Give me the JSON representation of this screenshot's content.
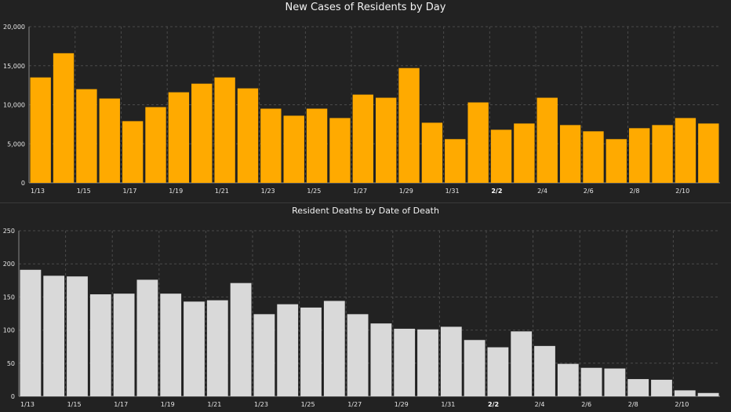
{
  "chart_data": [
    {
      "type": "bar",
      "title": "New Cases of Residents by Day",
      "xlabel": "",
      "ylabel": "",
      "ylim": [
        0,
        20000
      ],
      "yticks": [
        0,
        5000,
        10000,
        15000,
        20000
      ],
      "ytick_labels": [
        "0",
        "5,000",
        "10,000",
        "15,000",
        "20,000"
      ],
      "grid": true,
      "bar_color": "#FFAA00",
      "categories": [
        "1/13",
        "1/14",
        "1/15",
        "1/16",
        "1/17",
        "1/18",
        "1/19",
        "1/20",
        "1/21",
        "1/22",
        "1/23",
        "1/24",
        "1/25",
        "1/26",
        "1/27",
        "1/28",
        "1/29",
        "1/30",
        "1/31",
        "2/1",
        "2/2",
        "2/3",
        "2/4",
        "2/5",
        "2/6",
        "2/7",
        "2/8",
        "2/9",
        "2/10",
        "2/11"
      ],
      "xtick_labels": [
        "1/13",
        "1/15",
        "1/17",
        "1/19",
        "1/21",
        "1/23",
        "1/25",
        "1/27",
        "1/29",
        "1/31",
        "2/2",
        "2/4",
        "2/6",
        "2/8",
        "2/10"
      ],
      "bold_xtick": "2/2",
      "values": [
        13500,
        16600,
        12000,
        10800,
        7900,
        9700,
        11600,
        12700,
        13500,
        12100,
        9500,
        8600,
        9500,
        8300,
        11300,
        10900,
        14700,
        7700,
        5600,
        10300,
        6800,
        7600,
        10900,
        7400,
        6600,
        5600,
        7000,
        7400,
        8300,
        7600
      ]
    },
    {
      "type": "bar",
      "title": "Resident Deaths by Date of Death",
      "xlabel": "",
      "ylabel": "",
      "ylim": [
        0,
        250
      ],
      "yticks": [
        0,
        50,
        100,
        150,
        200,
        250
      ],
      "ytick_labels": [
        "0",
        "50",
        "100",
        "150",
        "200",
        "250"
      ],
      "grid": true,
      "bar_color": "#D9D9D9",
      "categories": [
        "1/13",
        "1/14",
        "1/15",
        "1/16",
        "1/17",
        "1/18",
        "1/19",
        "1/20",
        "1/21",
        "1/22",
        "1/23",
        "1/24",
        "1/25",
        "1/26",
        "1/27",
        "1/28",
        "1/29",
        "1/30",
        "1/31",
        "2/1",
        "2/2",
        "2/3",
        "2/4",
        "2/5",
        "2/6",
        "2/7",
        "2/8",
        "2/9",
        "2/10",
        "2/11"
      ],
      "xtick_labels": [
        "1/13",
        "1/15",
        "1/17",
        "1/19",
        "1/21",
        "1/23",
        "1/25",
        "1/27",
        "1/29",
        "1/31",
        "2/2",
        "2/4",
        "2/6",
        "2/8",
        "2/10"
      ],
      "bold_xtick": "2/2",
      "values": [
        191,
        182,
        181,
        154,
        155,
        176,
        155,
        143,
        145,
        171,
        124,
        139,
        134,
        144,
        124,
        110,
        102,
        101,
        105,
        85,
        74,
        98,
        76,
        49,
        43,
        42,
        26,
        25,
        9,
        5
      ]
    }
  ]
}
